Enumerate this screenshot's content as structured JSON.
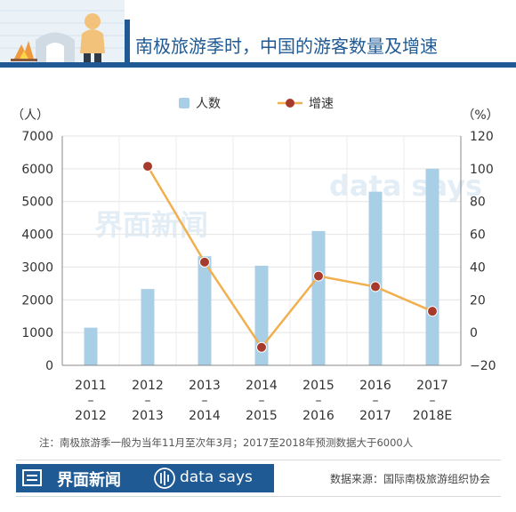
{
  "title": "南极旅游季时，中国的游客数量及增速",
  "watermark": {
    "brand_cn": "界面新闻",
    "brand_en": "data says"
  },
  "note": "注：南极旅游季一般为当年11月至次年3月；2017至2018年预测数据大于6000人",
  "footer": {
    "brand_cn": "界面新闻",
    "brand_en": "data says",
    "source": "数据来源：国际南极旅游组织协会"
  },
  "colors": {
    "bar": "#a9cfe6",
    "line": "#f0b050",
    "marker": "#a63a2c",
    "header_blue": "#1f5a94"
  },
  "chart_data": {
    "type": "bar+line",
    "categories": [
      [
        "2011",
        "–",
        "2012"
      ],
      [
        "2012",
        "–",
        "2013"
      ],
      [
        "2013",
        "–",
        "2014"
      ],
      [
        "2014",
        "–",
        "2015"
      ],
      [
        "2015",
        "–",
        "2016"
      ],
      [
        "2016",
        "–",
        "2017"
      ],
      [
        "2017",
        "–",
        "2018E"
      ]
    ],
    "series": [
      {
        "name": "人数",
        "type": "bar",
        "axis": "left",
        "values": [
          1150,
          2330,
          3330,
          3040,
          4100,
          5300,
          6000
        ]
      },
      {
        "name": "增速",
        "type": "line",
        "axis": "right",
        "values": [
          null,
          101.5,
          43,
          -9,
          34.5,
          28,
          13
        ]
      }
    ],
    "left_axis": {
      "unit": "（人）",
      "min": 0,
      "max": 7000,
      "ticks": [
        0,
        1000,
        2000,
        3000,
        4000,
        5000,
        6000,
        7000
      ]
    },
    "right_axis": {
      "unit": "（%）",
      "min": -20,
      "max": 120,
      "ticks": [
        -20,
        0,
        20,
        40,
        60,
        80,
        100,
        120
      ]
    },
    "legend": "top-center",
    "grid": true
  }
}
